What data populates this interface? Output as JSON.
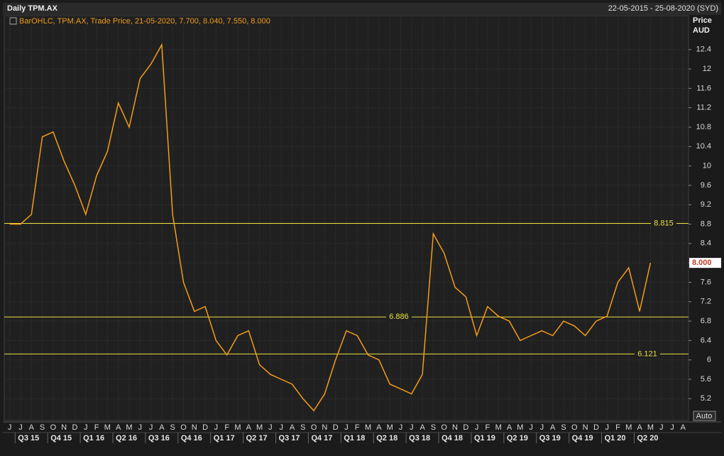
{
  "chart_data": {
    "type": "line",
    "title": "Daily TPM.AX",
    "date_range": "22-05-2015 - 25-08-2020 (SYD)",
    "legend_text": "BarOHLC, TPM.AX, Trade Price, 21-05-2020, 7.700, 8.040, 7.550, 8.000",
    "y_axis_title": "Price",
    "y_axis_unit": "AUD",
    "auto_button": "Auto",
    "color": "#f39c1a",
    "categories": [
      "J",
      "J",
      "A",
      "S",
      "O",
      "N",
      "D",
      "J",
      "F",
      "M",
      "A",
      "M",
      "J",
      "J",
      "A",
      "S",
      "O",
      "N",
      "D",
      "J",
      "F",
      "M",
      "A",
      "M",
      "J",
      "J",
      "A",
      "S",
      "O",
      "N",
      "D",
      "J",
      "F",
      "M",
      "A",
      "M",
      "J",
      "J",
      "A",
      "S",
      "O",
      "N",
      "D",
      "J",
      "F",
      "M",
      "A",
      "M",
      "J",
      "J",
      "A",
      "S",
      "O",
      "N",
      "D",
      "J",
      "F",
      "M",
      "A",
      "M",
      "J",
      "J",
      "A"
    ],
    "quarters": [
      "Q3 15",
      "Q4 15",
      "Q1 16",
      "Q2 16",
      "Q3 16",
      "Q4 16",
      "Q1 17",
      "Q2 17",
      "Q3 17",
      "Q4 17",
      "Q1 18",
      "Q2 18",
      "Q3 18",
      "Q4 18",
      "Q1 19",
      "Q2 19",
      "Q3 19",
      "Q4 19",
      "Q1 20",
      "Q2 20"
    ],
    "values": [
      8.8,
      8.8,
      9.0,
      10.6,
      10.7,
      10.1,
      9.6,
      9.0,
      9.8,
      10.3,
      11.3,
      10.8,
      11.8,
      12.1,
      12.5,
      9.0,
      7.6,
      7.0,
      7.1,
      6.4,
      6.1,
      6.5,
      6.6,
      5.9,
      5.7,
      5.6,
      5.5,
      5.2,
      4.95,
      5.3,
      6.0,
      6.6,
      6.5,
      6.1,
      6.0,
      5.5,
      5.4,
      5.3,
      5.7,
      8.6,
      8.2,
      7.5,
      7.3,
      6.5,
      7.1,
      6.9,
      6.8,
      6.4,
      6.5,
      6.6,
      6.5,
      6.8,
      6.7,
      6.5,
      6.8,
      6.9,
      7.6,
      7.9,
      7.0,
      8.0,
      null,
      null,
      null
    ],
    "ylim": [
      4.75,
      13.1
    ],
    "yticks": [
      5.2,
      5.6,
      6,
      6.4,
      6.8,
      7.2,
      7.6,
      8,
      8.4,
      8.8,
      9.2,
      9.6,
      10,
      10.4,
      10.8,
      11.2,
      11.6,
      12,
      12.4
    ],
    "hlines": [
      8.815,
      6.886,
      6.121
    ],
    "last_price": {
      "value": 8.0,
      "label": "8.000"
    },
    "grid": true
  }
}
